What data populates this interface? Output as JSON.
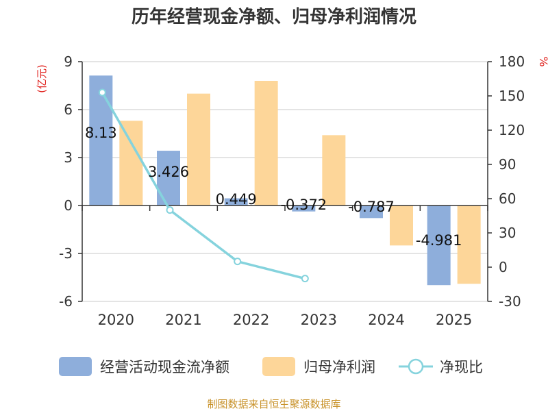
{
  "chart_data": {
    "type": "bar+line",
    "title": "历年经营现金净额、归母净利润情况",
    "left_axis_label": "(亿元)",
    "right_axis_label": "%",
    "categories": [
      "2020",
      "2021",
      "2022",
      "2023",
      "2024",
      "2025"
    ],
    "left_ylim": [
      -6,
      9
    ],
    "left_ticks": [
      9,
      6,
      3,
      0,
      -3,
      -6
    ],
    "right_ylim": [
      -30,
      180
    ],
    "right_ticks": [
      180,
      150,
      120,
      90,
      60,
      30,
      0,
      -30
    ],
    "series": [
      {
        "name": "经营活动现金流净额",
        "type": "bar",
        "color": "#8eaedb",
        "values": [
          8.13,
          3.426,
          0.449,
          -0.372,
          -0.787,
          -4.981
        ],
        "labels": [
          "8.13",
          "3.426",
          "0.449",
          "-0.372",
          "-0.787",
          "-4.981"
        ]
      },
      {
        "name": "归母净利润",
        "type": "bar",
        "color": "#fdd699",
        "values": [
          5.3,
          7.0,
          7.8,
          4.4,
          -2.5,
          -4.9
        ]
      },
      {
        "name": "净现比",
        "type": "line",
        "color": "#85d3dd",
        "values": [
          153,
          50,
          5,
          -10,
          null,
          null
        ]
      }
    ],
    "legend_position": "bottom"
  },
  "source": "制图数据来自恒生聚源数据库",
  "colors": {
    "axis_label_red": "#e0201c",
    "source_text": "#c8922a",
    "grid": "#cccccc"
  }
}
